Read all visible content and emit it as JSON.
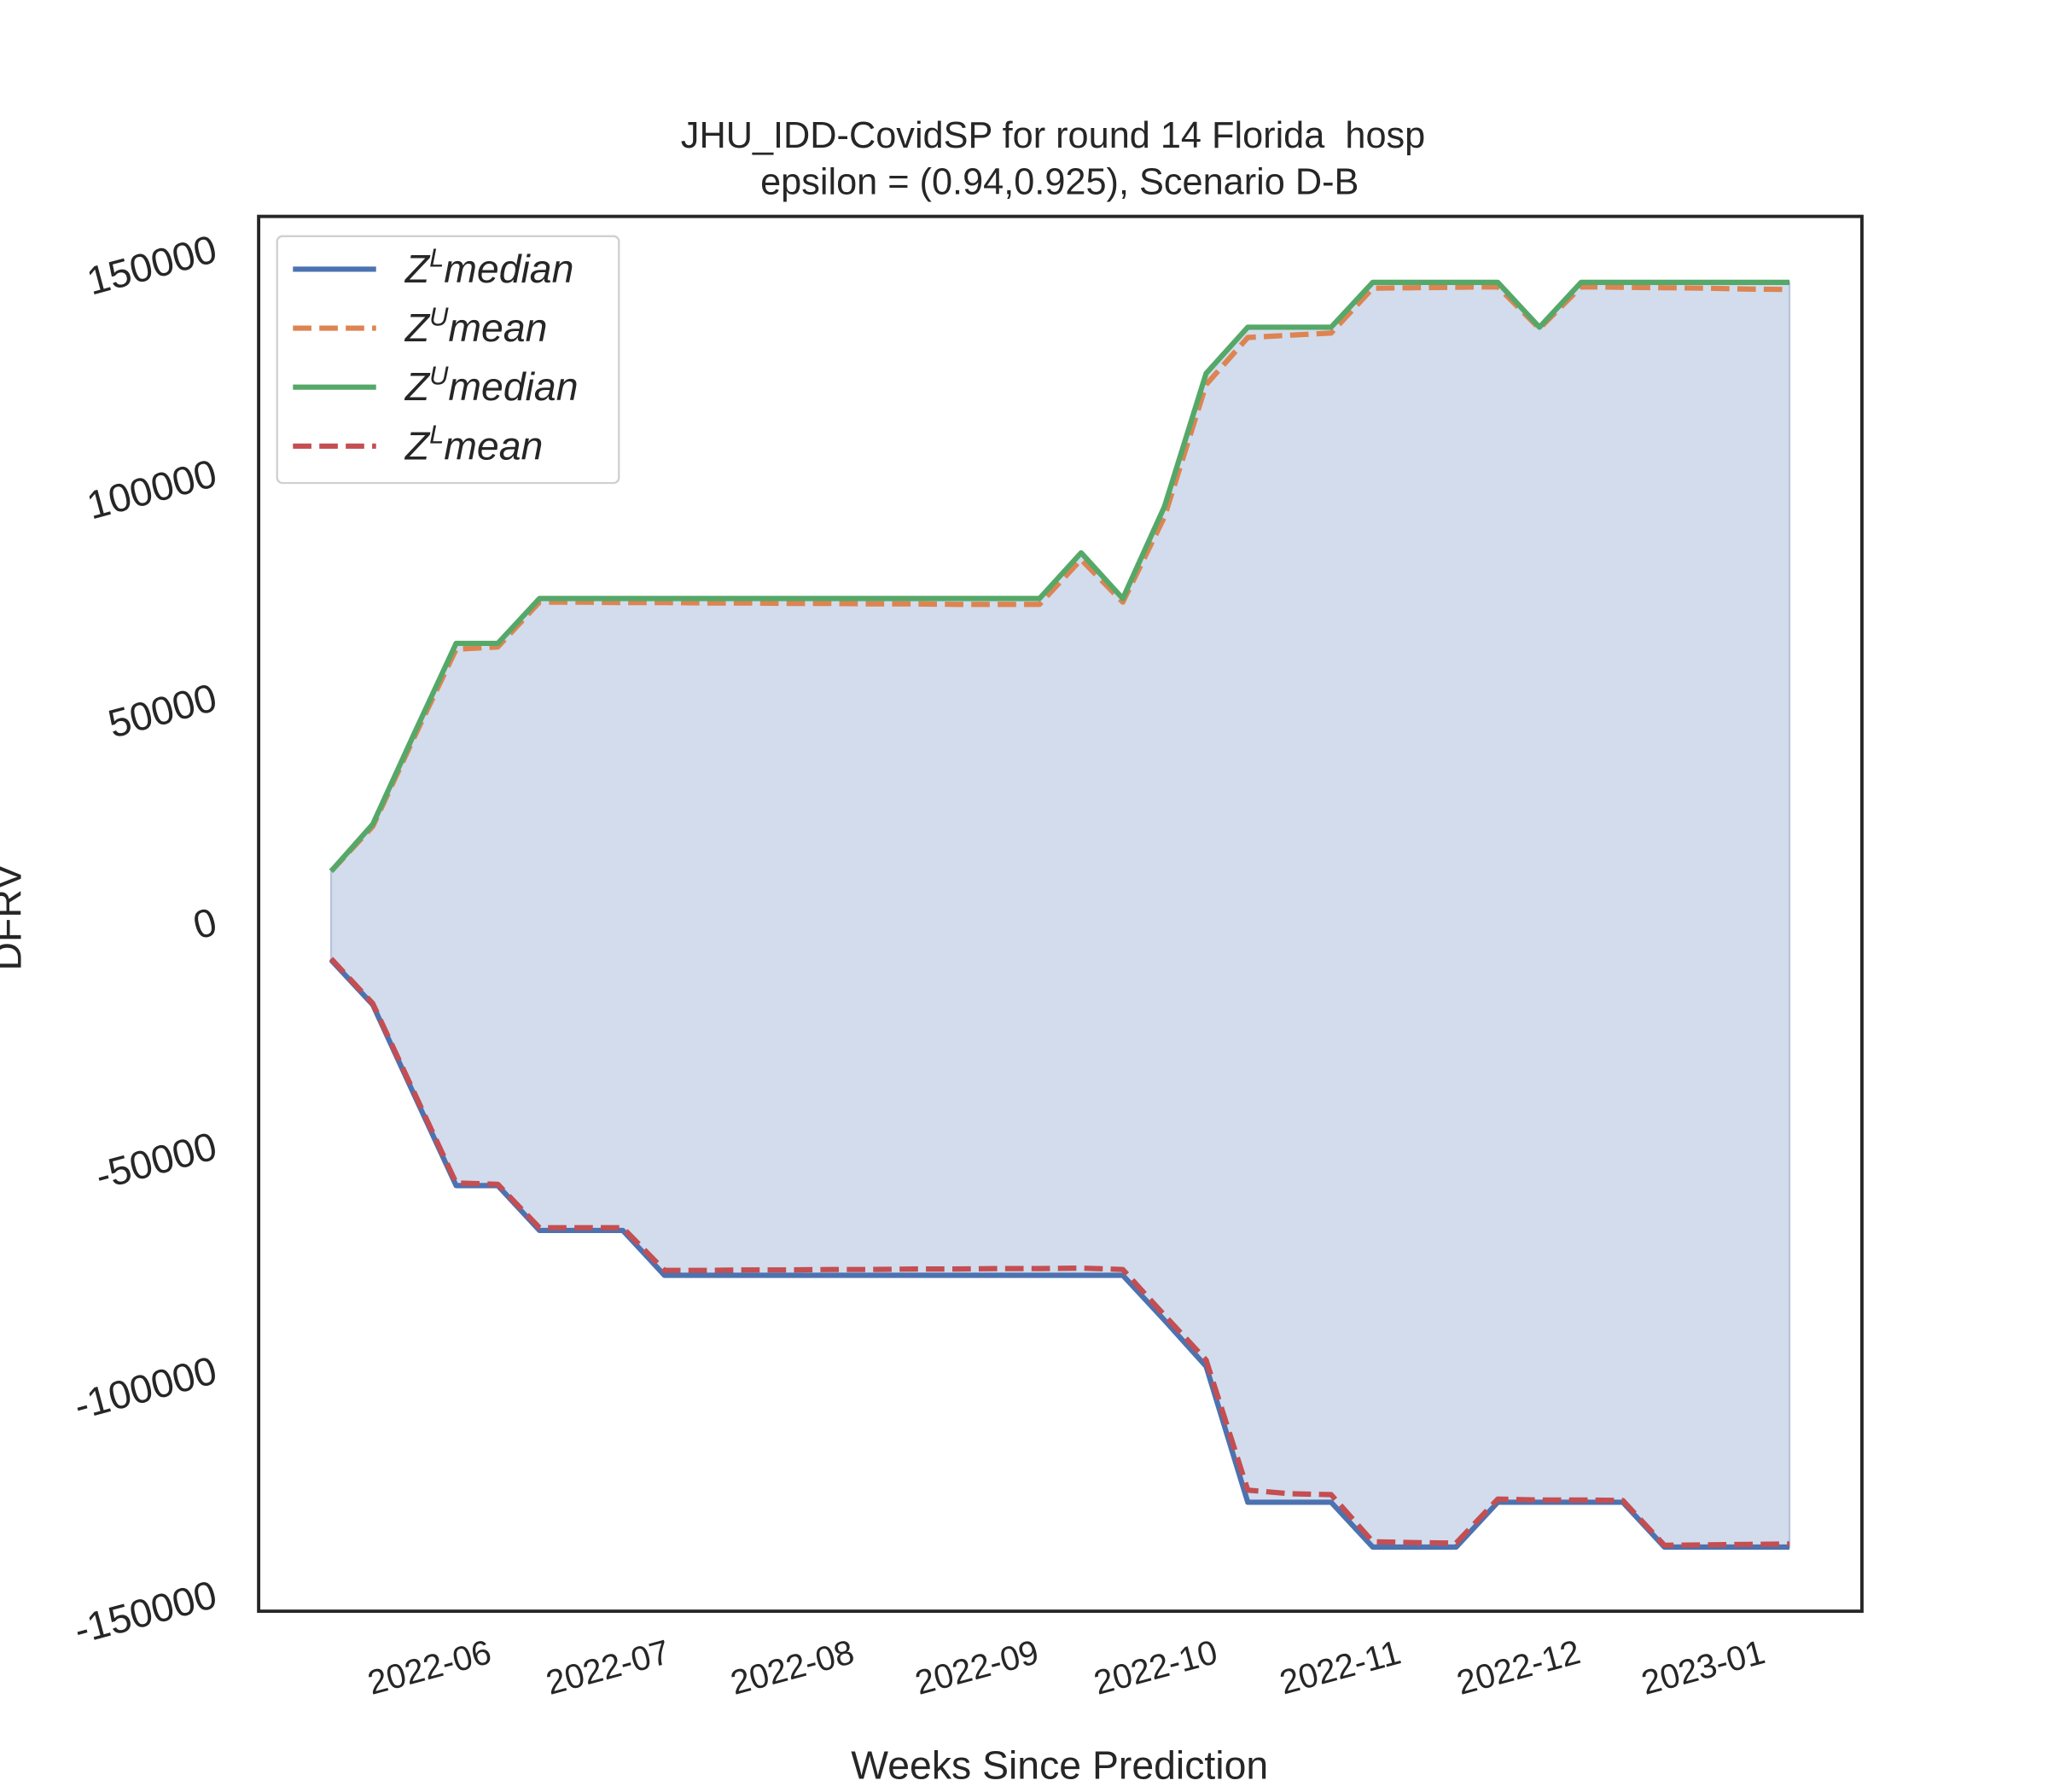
{
  "chart_data": {
    "type": "line",
    "title": "JHU_IDD-CovidSP for round 14 Florida  hosp",
    "subtitle": "epsilon = (0.94,0.925), Scenario D-B",
    "x_label": "Weeks Since Prediction",
    "y_label": "DFRV",
    "x": [
      0,
      1,
      2,
      3,
      4,
      5,
      6,
      7,
      8,
      9,
      10,
      11,
      12,
      13,
      14,
      15,
      16,
      17,
      18,
      19,
      20,
      21,
      22,
      23,
      24,
      25,
      26,
      27,
      28,
      29,
      30,
      31,
      32,
      33,
      34,
      35
    ],
    "xlim": [
      -1.74,
      36.74
    ],
    "xticks": [
      {
        "value": 2.43,
        "label": "2022-06"
      },
      {
        "value": 6.71,
        "label": "2022-07"
      },
      {
        "value": 11.14,
        "label": "2022-08"
      },
      {
        "value": 15.57,
        "label": "2022-09"
      },
      {
        "value": 19.86,
        "label": "2022-10"
      },
      {
        "value": 24.29,
        "label": "2022-11"
      },
      {
        "value": 28.57,
        "label": "2022-12"
      },
      {
        "value": 33.0,
        "label": "2023-01"
      }
    ],
    "ylim": [
      -154000,
      157000
    ],
    "yticks": [
      -150000,
      -100000,
      -50000,
      0,
      50000,
      100000,
      150000
    ],
    "grid": false,
    "legend": "upper left",
    "fill_color": "#d2dcec",
    "series": [
      {
        "name": "Z^L median",
        "color": "#4c72b0",
        "dash": false,
        "values": [
          -8800,
          -18800,
          -39000,
          -59100,
          -59100,
          -69100,
          -69100,
          -69100,
          -79100,
          -79100,
          -79100,
          -79100,
          -79100,
          -79100,
          -79100,
          -79100,
          -79100,
          -79100,
          -79100,
          -79100,
          -89100,
          -99400,
          -129700,
          -129700,
          -129700,
          -139700,
          -139700,
          -139700,
          -129700,
          -129700,
          -129700,
          -129700,
          -139700,
          -139700,
          -139700,
          -139700
        ]
      },
      {
        "name": "Z^U mean",
        "color": "#dd8452",
        "dash": true,
        "values": [
          11000,
          21000,
          41000,
          60500,
          61000,
          71000,
          71000,
          70900,
          70900,
          70800,
          70800,
          70700,
          70700,
          70600,
          70600,
          70500,
          70500,
          70500,
          80500,
          71000,
          90000,
          119500,
          130000,
          130500,
          131000,
          141000,
          141100,
          141200,
          141300,
          132000,
          141300,
          141200,
          141100,
          141000,
          140800,
          140700
        ]
      },
      {
        "name": "Z^U median",
        "color": "#55a868",
        "dash": false,
        "values": [
          11000,
          21500,
          41800,
          61800,
          61800,
          71800,
          71800,
          71800,
          71800,
          71800,
          71800,
          71800,
          71800,
          71800,
          71800,
          71800,
          71800,
          71800,
          82000,
          71800,
          92300,
          122000,
          132300,
          132300,
          132300,
          142300,
          142300,
          142300,
          142300,
          132300,
          142300,
          142300,
          142300,
          142300,
          142300,
          142300
        ]
      },
      {
        "name": "Z^L mean",
        "color": "#c44e52",
        "dash": true,
        "values": [
          -8500,
          -18500,
          -38500,
          -58500,
          -58800,
          -68500,
          -68500,
          -68500,
          -78000,
          -78000,
          -77900,
          -77900,
          -77800,
          -77800,
          -77700,
          -77700,
          -77600,
          -77600,
          -77500,
          -77800,
          -88000,
          -98000,
          -127000,
          -127800,
          -128000,
          -138500,
          -138700,
          -138800,
          -129000,
          -129200,
          -129200,
          -129300,
          -139300,
          -139200,
          -139100,
          -139000
        ]
      }
    ]
  }
}
